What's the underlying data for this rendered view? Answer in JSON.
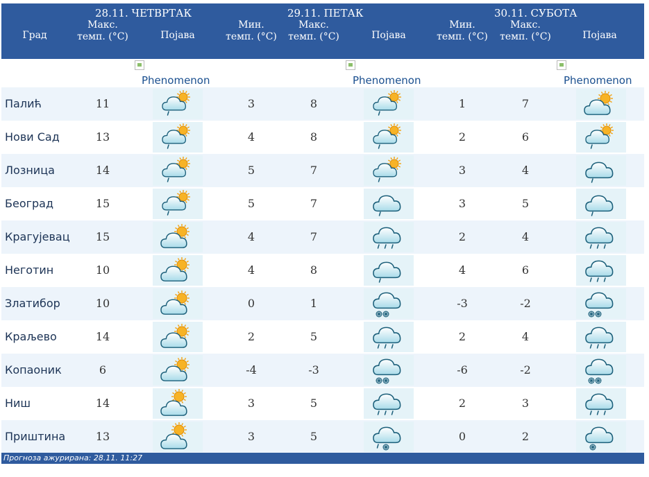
{
  "header": {
    "city_label": "Град",
    "days": [
      {
        "title": "28.11. ЧЕТВРТАК",
        "cols": [
          "Макс. темп. (°C)",
          "Појава"
        ]
      },
      {
        "title": "29.11. ПЕТАК",
        "cols": [
          "Мин. темп. (°C)",
          "Макс. темп. (°C)",
          "Појава"
        ]
      },
      {
        "title": "30.11. СУБОТА",
        "cols": [
          "Мин. темп. (°C)",
          "Макс. темп. (°C)",
          "Појава"
        ]
      }
    ]
  },
  "phenomenon_alt": "Phenomenon",
  "rows": [
    {
      "city": "Палић",
      "d1_max": "11",
      "d1_icon": "cloud-sun-drizzle-icon",
      "d2_min": "3",
      "d2_max": "8",
      "d2_icon": "cloud-sun-drizzle-icon",
      "d3_min": "1",
      "d3_max": "7",
      "d3_icon": "cloud-sun-icon"
    },
    {
      "city": "Нови Сад",
      "d1_max": "13",
      "d1_icon": "cloud-sun-drizzle-icon",
      "d2_min": "4",
      "d2_max": "8",
      "d2_icon": "cloud-sun-drizzle-icon",
      "d3_min": "2",
      "d3_max": "6",
      "d3_icon": "cloud-sun-drizzle-icon"
    },
    {
      "city": "Лозница",
      "d1_max": "14",
      "d1_icon": "cloud-sun-drizzle-icon",
      "d2_min": "5",
      "d2_max": "7",
      "d2_icon": "cloud-sun-drizzle-icon",
      "d3_min": "3",
      "d3_max": "4",
      "d3_icon": "cloud-drizzle-icon"
    },
    {
      "city": "Београд",
      "d1_max": "15",
      "d1_icon": "cloud-sun-drizzle-icon",
      "d2_min": "5",
      "d2_max": "7",
      "d2_icon": "cloud-drizzle-icon",
      "d3_min": "3",
      "d3_max": "5",
      "d3_icon": "cloud-drizzle-icon"
    },
    {
      "city": "Крагујевац",
      "d1_max": "15",
      "d1_icon": "cloud-sun-icon",
      "d2_min": "4",
      "d2_max": "7",
      "d2_icon": "cloud-rain-icon",
      "d3_min": "2",
      "d3_max": "4",
      "d3_icon": "cloud-rain-icon"
    },
    {
      "city": "Неготин",
      "d1_max": "10",
      "d1_icon": "cloud-sun-icon",
      "d2_min": "4",
      "d2_max": "8",
      "d2_icon": "cloud-drizzle-icon",
      "d3_min": "4",
      "d3_max": "6",
      "d3_icon": "cloud-rain-icon"
    },
    {
      "city": "Златибор",
      "d1_max": "10",
      "d1_icon": "cloud-sun-icon",
      "d2_min": "0",
      "d2_max": "1",
      "d2_icon": "cloud-snow-icon",
      "d3_min": "-3",
      "d3_max": "-2",
      "d3_icon": "cloud-snow-icon"
    },
    {
      "city": "Краљево",
      "d1_max": "14",
      "d1_icon": "cloud-sun-icon",
      "d2_min": "2",
      "d2_max": "5",
      "d2_icon": "cloud-rain-icon",
      "d3_min": "2",
      "d3_max": "4",
      "d3_icon": "cloud-rain-icon"
    },
    {
      "city": "Копаоник",
      "d1_max": "6",
      "d1_icon": "cloud-sun-icon",
      "d2_min": "-4",
      "d2_max": "-3",
      "d2_icon": "cloud-snow-icon",
      "d3_min": "-6",
      "d3_max": "-2",
      "d3_icon": "cloud-snow-icon"
    },
    {
      "city": "Ниш",
      "d1_max": "14",
      "d1_icon": "sun-cloud-icon",
      "d2_min": "3",
      "d2_max": "5",
      "d2_icon": "cloud-rain-icon",
      "d3_min": "2",
      "d3_max": "3",
      "d3_icon": "cloud-rain-icon"
    },
    {
      "city": "Приштина",
      "d1_max": "13",
      "d1_icon": "sun-cloud-icon",
      "d2_min": "3",
      "d2_max": "5",
      "d2_icon": "cloud-sleet-icon",
      "d3_min": "0",
      "d3_max": "2",
      "d3_icon": "cloud-snow-light-icon"
    }
  ],
  "footer": {
    "text": "Прогноза ажурирана:  28.11. 11:27"
  },
  "colors": {
    "header_bg": "#2f5b9e",
    "row_alt": "#edf4fb",
    "icon_bg": "#e5f3f8",
    "link": "#1a4f8f"
  }
}
